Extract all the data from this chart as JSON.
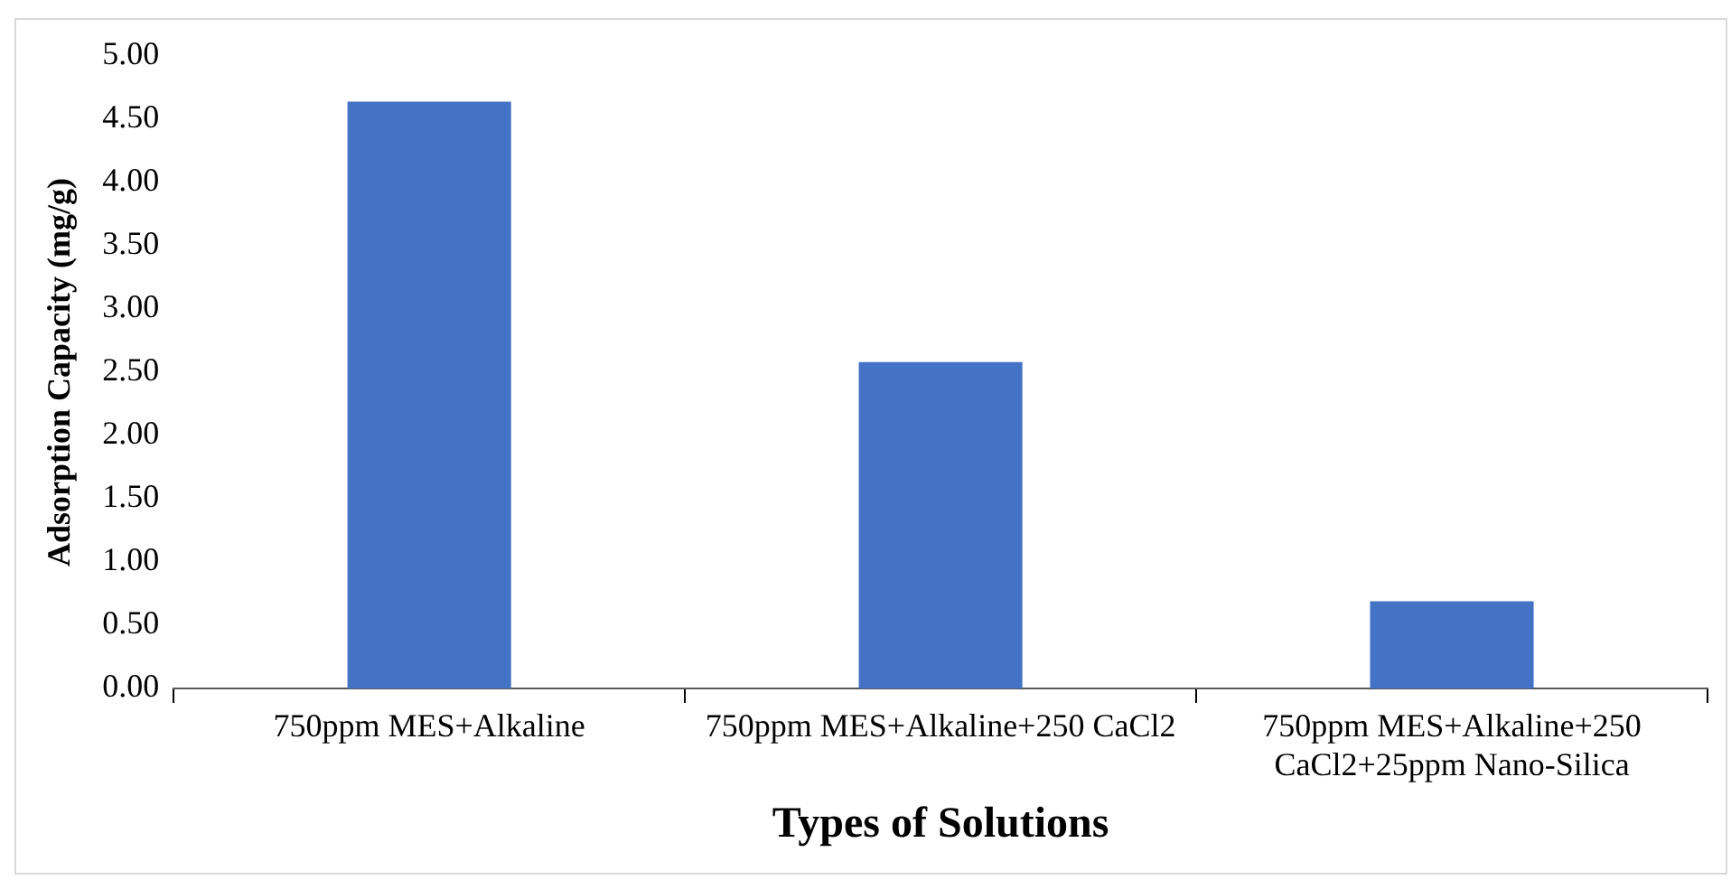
{
  "chart_data": {
    "type": "bar",
    "xlabel": "Types of Solutions",
    "ylabel": "Adsorption Capacity (mg/g)",
    "categories": [
      "750ppm MES+Alkaline",
      "750ppm MES+Alkaline+250 CaCl2",
      "750ppm MES+Alkaline+250 CaCl2+25ppm Nano-Silica"
    ],
    "values": [
      4.64,
      2.58,
      0.69
    ],
    "color": "#4472c4",
    "ylim": [
      0,
      5
    ],
    "yticks": [
      {
        "value": 0,
        "label": "0.00"
      },
      {
        "value": 0.5,
        "label": "0.50"
      },
      {
        "value": 1,
        "label": "1.00"
      },
      {
        "value": 1.5,
        "label": "1.50"
      },
      {
        "value": 2,
        "label": "2.00"
      },
      {
        "value": 2.5,
        "label": "2.50"
      },
      {
        "value": 3,
        "label": "3.00"
      },
      {
        "value": 3.5,
        "label": "3.50"
      },
      {
        "value": 4,
        "label": "4.00"
      },
      {
        "value": 4.5,
        "label": "4.50"
      },
      {
        "value": 5,
        "label": "5.00"
      }
    ],
    "grid": false,
    "legend": false
  }
}
